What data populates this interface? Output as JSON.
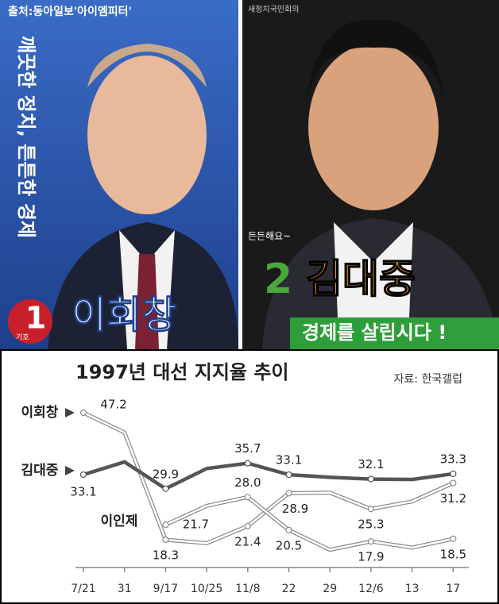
{
  "posters": {
    "source": "출처:동아일보'아이엠피터'",
    "left": {
      "slogan": "깨끗한 정치, 튼튼한 경제",
      "number": "1",
      "number_caption": "기호",
      "name": "이회창"
    },
    "right": {
      "party": "새정치국민회의",
      "tagline": "든든해요~",
      "number": "2",
      "name": "김대중",
      "slogan": "경제를 살립시다 !"
    }
  },
  "chart_data": {
    "type": "line",
    "title": "1997년 대선 지지율 추이",
    "source": "자료: 한국갤럽",
    "categories": [
      "7/21",
      "31",
      "9/17",
      "10/25",
      "11/8",
      "22",
      "29",
      "12/6",
      "13",
      "17"
    ],
    "ylim": [
      14,
      50
    ],
    "series": [
      {
        "name": "이회창",
        "color": "#8c8c8c",
        "values": [
          47.2,
          42.7,
          18.3,
          17.5,
          21.4,
          28.9,
          29.0,
          25.3,
          27.0,
          31.2
        ],
        "value_labels": [
          "47.2",
          null,
          "18.3",
          null,
          "21.4",
          "28.9",
          null,
          "25.3",
          null,
          "31.2"
        ]
      },
      {
        "name": "김대중",
        "color": "#555555",
        "values": [
          33.1,
          36.0,
          29.9,
          34.5,
          35.7,
          33.1,
          32.5,
          32.1,
          32.0,
          33.3
        ],
        "value_labels": [
          "33.1",
          null,
          "29.9",
          null,
          "35.7",
          "33.1",
          null,
          "32.1",
          null,
          "33.3"
        ]
      },
      {
        "name": "이인제",
        "color": "#8c8c8c",
        "values": [
          null,
          null,
          21.7,
          26.0,
          28.0,
          20.5,
          16.0,
          17.9,
          16.5,
          18.5
        ],
        "value_labels": [
          null,
          null,
          "21.7",
          null,
          "28.0",
          "20.5",
          null,
          "17.9",
          null,
          "18.5"
        ]
      }
    ]
  }
}
